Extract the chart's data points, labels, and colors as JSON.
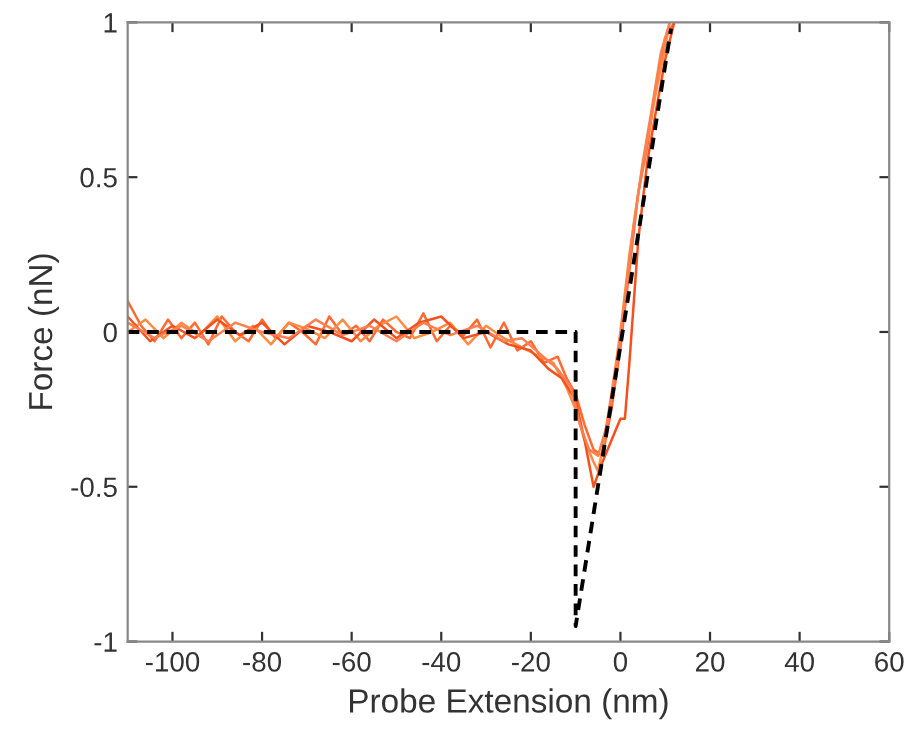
{
  "chart_data": {
    "type": "line",
    "xlabel": "Probe Extension (nm)",
    "ylabel": "Force (nN)",
    "xlim": [
      -110,
      60
    ],
    "ylim": [
      -1,
      1
    ],
    "xticks": [
      -100,
      -80,
      -60,
      -40,
      -20,
      0,
      20,
      40,
      60
    ],
    "yticks": [
      -1,
      -0.5,
      0,
      0.5,
      1
    ],
    "grid": false,
    "legend": false,
    "series": [
      {
        "color": "#ff6a33",
        "x": [
          -110,
          -107,
          -104,
          -101,
          -98,
          -95,
          -92,
          -89,
          -86,
          -83,
          -80,
          -77,
          -74,
          -71,
          -68,
          -65,
          -62,
          -59,
          -56,
          -53,
          -50,
          -47,
          -44,
          -41,
          -38,
          -35,
          -32,
          -29,
          -26,
          -23,
          -20,
          -17,
          -14,
          -12,
          -10,
          -8,
          -6,
          -4,
          -2,
          0,
          2,
          4,
          6,
          8,
          10,
          12
        ],
        "values": [
          0.1,
          0.02,
          -0.03,
          0.04,
          -0.02,
          0.03,
          -0.04,
          0.05,
          0.0,
          -0.03,
          0.04,
          -0.02,
          0.03,
          0.0,
          -0.04,
          0.05,
          -0.01,
          0.02,
          -0.03,
          0.04,
          0.0,
          -0.02,
          0.06,
          -0.03,
          0.02,
          -0.01,
          0.04,
          -0.05,
          0.03,
          -0.06,
          -0.03,
          -0.1,
          -0.08,
          -0.15,
          -0.2,
          -0.3,
          -0.38,
          -0.4,
          -0.25,
          -0.05,
          0.2,
          0.45,
          0.6,
          0.8,
          0.95,
          1.0
        ]
      },
      {
        "color": "#ff8c42",
        "x": [
          -110,
          -106,
          -102,
          -98,
          -94,
          -90,
          -86,
          -82,
          -78,
          -74,
          -70,
          -66,
          -62,
          -58,
          -54,
          -50,
          -46,
          -42,
          -38,
          -34,
          -30,
          -26,
          -22,
          -18,
          -15,
          -12,
          -10,
          -8,
          -6,
          -5,
          -4,
          -2,
          0,
          2,
          4,
          6,
          8,
          10,
          11
        ],
        "values": [
          0.0,
          0.04,
          -0.02,
          0.03,
          -0.01,
          0.05,
          -0.03,
          0.02,
          -0.04,
          0.03,
          0.01,
          -0.02,
          0.04,
          -0.03,
          0.02,
          0.05,
          -0.02,
          0.0,
          0.03,
          -0.04,
          0.02,
          -0.02,
          -0.05,
          -0.08,
          -0.1,
          -0.18,
          -0.25,
          -0.35,
          -0.42,
          -0.45,
          -0.38,
          -0.2,
          0.0,
          0.25,
          0.45,
          0.62,
          0.78,
          0.92,
          1.0
        ]
      },
      {
        "color": "#f4511e",
        "x": [
          -110,
          -105,
          -100,
          -95,
          -90,
          -85,
          -80,
          -75,
          -70,
          -65,
          -60,
          -55,
          -50,
          -45,
          -40,
          -35,
          -30,
          -25,
          -20,
          -16,
          -13,
          -10,
          -8,
          -6,
          -4,
          -2,
          0,
          1,
          2,
          4,
          6,
          8,
          10,
          12
        ],
        "values": [
          0.05,
          -0.03,
          0.02,
          -0.02,
          0.04,
          -0.01,
          0.03,
          -0.04,
          0.02,
          0.0,
          -0.03,
          0.04,
          -0.02,
          0.03,
          0.05,
          -0.02,
          0.0,
          -0.04,
          -0.06,
          -0.12,
          -0.15,
          -0.22,
          -0.35,
          -0.5,
          -0.42,
          -0.35,
          -0.28,
          -0.28,
          -0.1,
          0.3,
          0.55,
          0.72,
          0.88,
          1.0
        ]
      },
      {
        "color": "#ff7f50",
        "x": [
          -110,
          -104,
          -98,
          -92,
          -86,
          -80,
          -74,
          -68,
          -62,
          -56,
          -50,
          -44,
          -38,
          -32,
          -26,
          -22,
          -18,
          -14,
          -11,
          -9,
          -7,
          -5,
          -3,
          -1,
          1,
          3,
          5,
          7,
          9,
          11
        ],
        "values": [
          0.03,
          -0.02,
          0.02,
          -0.03,
          0.03,
          0.0,
          -0.02,
          0.04,
          -0.01,
          0.02,
          -0.03,
          0.03,
          -0.01,
          0.02,
          -0.03,
          -0.02,
          -0.07,
          -0.12,
          -0.18,
          -0.3,
          -0.38,
          -0.4,
          -0.3,
          -0.12,
          0.1,
          0.35,
          0.55,
          0.72,
          0.9,
          1.0
        ]
      },
      {
        "color": "#000000",
        "line_style": "dashed",
        "x": [
          -110,
          -10,
          -10,
          11.3
        ],
        "values": [
          0,
          0,
          -0.95,
          0.98
        ]
      }
    ]
  }
}
